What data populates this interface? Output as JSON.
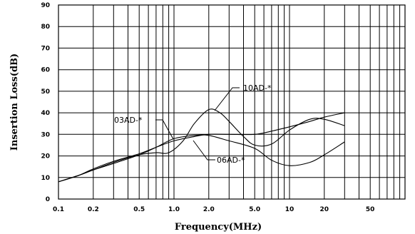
{
  "chart_data": {
    "type": "line",
    "xlabel": "Frequency(MHz)",
    "ylabel": "Insertion Loss(dB)",
    "xscale": "log",
    "xlim": [
      0.1,
      100
    ],
    "ylim": [
      0,
      90
    ],
    "grid": true,
    "y_ticks": [
      "0",
      "10",
      "20",
      "30",
      "40",
      "50",
      "60",
      "70",
      "80",
      "90"
    ],
    "x_tick_labels": [
      {
        "value": 0.1,
        "label": "0.1"
      },
      {
        "value": 0.2,
        "label": "0.2"
      },
      {
        "value": 0.5,
        "label": "0.5"
      },
      {
        "value": 1,
        "label": "1.0"
      },
      {
        "value": 2,
        "label": "2.0"
      },
      {
        "value": 5,
        "label": "5.0"
      },
      {
        "value": 10,
        "label": "10"
      },
      {
        "value": 20,
        "label": "20"
      },
      {
        "value": 50,
        "label": "50"
      }
    ],
    "series": [
      {
        "name": "03AD-*",
        "x": [
          0.1,
          0.15,
          0.2,
          0.3,
          0.5,
          0.7,
          1.0,
          1.5,
          2.0,
          3.0,
          5.0,
          7.0,
          10,
          15,
          20,
          30
        ],
        "y": [
          8,
          11,
          14,
          17.5,
          21,
          24,
          27,
          29,
          30,
          30,
          30,
          31.5,
          33.5,
          36,
          38,
          40
        ]
      },
      {
        "name": "06AD-*",
        "x": [
          0.1,
          0.15,
          0.2,
          0.3,
          0.5,
          0.7,
          1.0,
          1.5,
          2.0,
          3.0,
          5.0,
          7.0,
          10,
          15,
          20,
          30
        ],
        "y": [
          8,
          11,
          13.5,
          16.5,
          20.5,
          24,
          28,
          29.5,
          29.5,
          27,
          23.5,
          18,
          15.5,
          17,
          20.5,
          26.5
        ]
      },
      {
        "name": "10AD-*",
        "x": [
          0.1,
          0.15,
          0.2,
          0.3,
          0.5,
          0.7,
          0.9,
          1.2,
          1.5,
          2.0,
          2.5,
          3.0,
          4.0,
          5.0,
          7.0,
          10,
          15,
          20,
          30
        ],
        "y": [
          8,
          11,
          13.5,
          17,
          20.5,
          21.5,
          21.5,
          27,
          35,
          41.5,
          40,
          36,
          29,
          25,
          25.5,
          32,
          37,
          37,
          34
        ]
      }
    ],
    "annotations": [
      "10AD-*",
      "03AD-*",
      "06AD-*"
    ]
  }
}
